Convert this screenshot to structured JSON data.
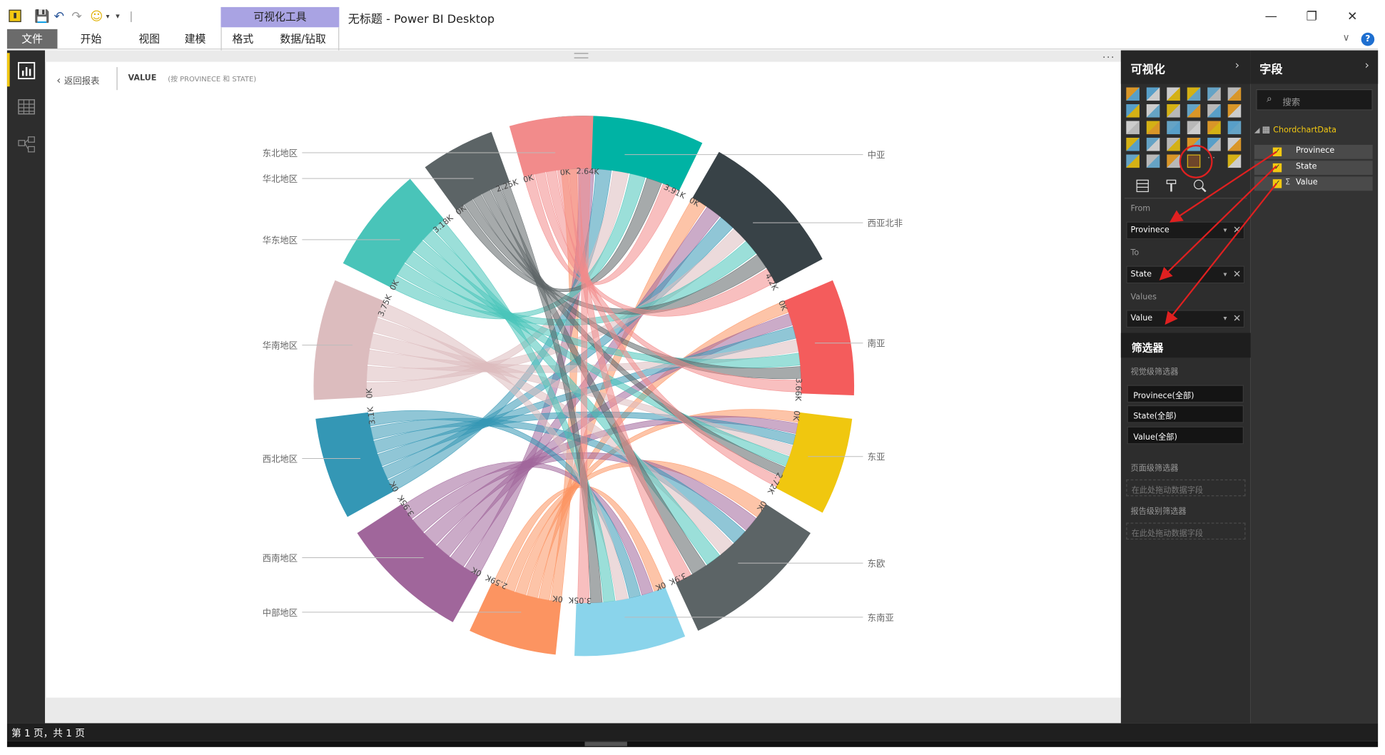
{
  "window": {
    "title": "无标题 - Power BI Desktop",
    "context_tab": "可视化工具",
    "minimize": "—",
    "restore": "❐",
    "close": "✕"
  },
  "ribbon": {
    "tabs": [
      "文件",
      "开始",
      "视图",
      "建模",
      "格式",
      "数据/钻取"
    ]
  },
  "canvas": {
    "back_label": "返回报表",
    "focus_title": "VALUE",
    "focus_subtitle": "(按 PROVINECE 和 STATE)",
    "more": "···"
  },
  "status": {
    "page_info": "第 1 页，共 1 页"
  },
  "viz_pane": {
    "title": "可视化",
    "from_label": "From",
    "from_value": "Provinece",
    "to_label": "To",
    "to_value": "State",
    "values_label": "Values",
    "values_value": "Value",
    "filters_title": "筛选器",
    "visual_filters_label": "视觉级筛选器",
    "filter_chips": [
      "Provinece(全部)",
      "State(全部)",
      "Value(全部)"
    ],
    "page_filters_label": "页面级筛选器",
    "page_drop": "在此处拖动数据字段",
    "report_filters_label": "报告级别筛选器",
    "report_drop": "在此处拖动数据字段"
  },
  "fields_pane": {
    "title": "字段",
    "search_placeholder": "搜索",
    "table_name": "ChordchartData",
    "fields": [
      "Provinece",
      "State",
      "Value"
    ],
    "value_sigma": "Σ"
  },
  "chart_data": {
    "type": "chord",
    "from_groups": [
      {
        "name": "东北地区",
        "total": "2.64K",
        "color": "#f28b8b"
      },
      {
        "name": "华北地区",
        "total": "2.25K",
        "color": "#5c6466"
      },
      {
        "name": "华东地区",
        "total": "3.18K",
        "color": "#49c4b9"
      },
      {
        "name": "华南地区",
        "total": "3.75K",
        "color": "#dcbcbe"
      },
      {
        "name": "西北地区",
        "total": "3.1K",
        "color": "#3497b5"
      },
      {
        "name": "西南地区",
        "total": "3.95K",
        "color": "#a0669b"
      },
      {
        "name": "中部地区",
        "total": "2.59K",
        "color": "#fc9461"
      }
    ],
    "to_groups": [
      {
        "name": "中亚",
        "total": "3.91K",
        "color": "#00b3a4"
      },
      {
        "name": "西亚北非",
        "total": "4.2K",
        "color": "#384247"
      },
      {
        "name": "南亚",
        "total": "3.66K",
        "color": "#f45c5c"
      },
      {
        "name": "东亚",
        "total": "2.72K",
        "color": "#f0c70f"
      },
      {
        "name": "东欧",
        "total": "3.9K",
        "color": "#5c6466"
      },
      {
        "name": "东南亚",
        "total": "3.05K",
        "color": "#8ad4eb"
      }
    ],
    "zero_label": "0K",
    "colors": {
      "accent": "#f2c811",
      "annotation": "#e02020"
    }
  }
}
